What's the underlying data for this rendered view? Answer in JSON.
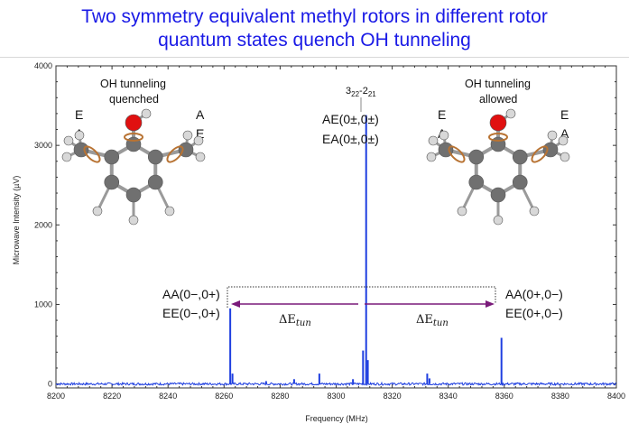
{
  "title": {
    "line1": "Two symmetry equivalent methyl rotors in different rotor",
    "line2": "quantum states quench OH tunneling"
  },
  "colors": {
    "title": "#1a1ae6",
    "spectrum": "#1f3fe0",
    "arrow": "#7a1a7a",
    "ring": "#b87333",
    "oxygen": "#e01010",
    "carbon": "#707070",
    "hydrogen": "#d8d8d8"
  },
  "chart_data": {
    "type": "line",
    "xlabel": "Frequency (MHz)",
    "ylabel": "Microwave Intensity (µV)",
    "xlim": [
      8200,
      8400
    ],
    "ylim": [
      -50,
      4000
    ],
    "x_ticks": [
      8200,
      8220,
      8240,
      8260,
      8280,
      8300,
      8320,
      8340,
      8360,
      8380,
      8400
    ],
    "y_ticks": [
      0,
      1000,
      2000,
      3000,
      4000
    ],
    "peaks": [
      {
        "x": 8262.2,
        "y": 950
      },
      {
        "x": 8263.0,
        "y": 130
      },
      {
        "x": 8275.0,
        "y": 35
      },
      {
        "x": 8285.0,
        "y": 60
      },
      {
        "x": 8294.0,
        "y": 130
      },
      {
        "x": 8306.0,
        "y": 60
      },
      {
        "x": 8309.6,
        "y": 420
      },
      {
        "x": 8310.7,
        "y": 3380
      },
      {
        "x": 8311.3,
        "y": 300
      },
      {
        "x": 8332.5,
        "y": 130
      },
      {
        "x": 8333.3,
        "y": 70
      },
      {
        "x": 8359.0,
        "y": 580
      }
    ],
    "line_label_left": "3",
    "line_label_left_sub": "22",
    "line_label_mid": "-2",
    "line_label_right_sub": "21",
    "annotations": {
      "left_top": "AA(0−,0+)",
      "left_bottom": "EE(0−,0+)",
      "center_top": "AE(0±,0±)",
      "center_bottom": "EA(0±,0±)",
      "right_top": "AA(0+,0−)",
      "right_bottom": "EE(0+,0−)",
      "delta_left": "ΔE",
      "delta_left_sub": "tun",
      "delta_right": "ΔE",
      "delta_right_sub": "tun"
    },
    "molecules": {
      "left_caption_1": "OH tunneling",
      "left_caption_2": "quenched",
      "left_label_E1": "E",
      "left_label_A1": "A",
      "left_label_A2": "A",
      "left_label_E2": "E",
      "right_caption_1": "OH tunneling",
      "right_caption_2": "allowed",
      "right_label_E1": "E",
      "right_label_A1": "A",
      "right_label_E2": "E",
      "right_label_A2": "A"
    }
  }
}
